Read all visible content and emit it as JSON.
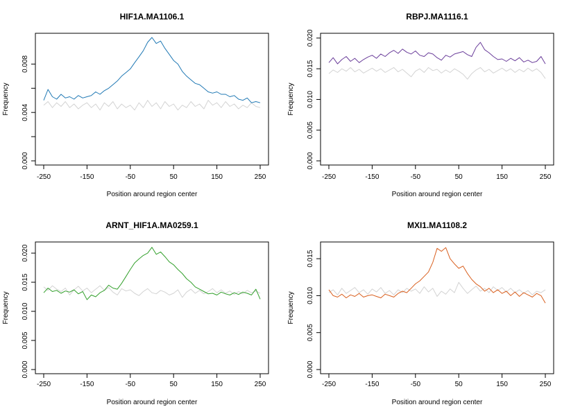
{
  "chart_data": [
    {
      "type": "line",
      "title": "HIF1A.MA1106.1",
      "xlabel": "Position around region center",
      "ylabel": "Frequency",
      "xlim": [
        -250,
        250
      ],
      "ylim": [
        0,
        0.0102
      ],
      "xticks": [
        -250,
        -150,
        -50,
        50,
        150,
        250
      ],
      "yticks": [
        "0.000",
        "0.004",
        "0.008"
      ],
      "yticks_minor": [
        0.002,
        0.006
      ],
      "series": [
        {
          "color": "#1f78b4",
          "x": [
            -250,
            -240,
            -230,
            -220,
            -210,
            -200,
            -190,
            -180,
            -170,
            -160,
            -150,
            -140,
            -130,
            -120,
            -110,
            -100,
            -90,
            -80,
            -70,
            -60,
            -50,
            -40,
            -30,
            -20,
            -10,
            0,
            10,
            20,
            30,
            40,
            50,
            60,
            70,
            80,
            90,
            100,
            110,
            120,
            130,
            140,
            150,
            160,
            170,
            180,
            190,
            200,
            210,
            220,
            230,
            240,
            250
          ],
          "y": [
            0.005,
            0.0059,
            0.0053,
            0.0051,
            0.0055,
            0.0052,
            0.0053,
            0.0051,
            0.0054,
            0.0052,
            0.0053,
            0.0054,
            0.0057,
            0.0055,
            0.0058,
            0.006,
            0.0063,
            0.0066,
            0.007,
            0.0073,
            0.0076,
            0.0081,
            0.0086,
            0.0091,
            0.0098,
            0.0102,
            0.0097,
            0.0099,
            0.0093,
            0.0088,
            0.0083,
            0.008,
            0.0074,
            0.007,
            0.0067,
            0.0064,
            0.0063,
            0.006,
            0.0057,
            0.0056,
            0.0057,
            0.0055,
            0.0055,
            0.0053,
            0.0054,
            0.0051,
            0.005,
            0.0052,
            0.0048,
            0.0049,
            0.0048
          ]
        },
        {
          "color": "#d3d3d3",
          "x": [
            -250,
            -240,
            -230,
            -220,
            -210,
            -200,
            -190,
            -180,
            -170,
            -160,
            -150,
            -140,
            -130,
            -120,
            -110,
            -100,
            -90,
            -80,
            -70,
            -60,
            -50,
            -40,
            -30,
            -20,
            -10,
            0,
            10,
            20,
            30,
            40,
            50,
            60,
            70,
            80,
            90,
            100,
            110,
            120,
            130,
            140,
            150,
            160,
            170,
            180,
            190,
            200,
            210,
            220,
            230,
            240,
            250
          ],
          "y": [
            0.0046,
            0.0049,
            0.0044,
            0.0048,
            0.0045,
            0.0049,
            0.0044,
            0.0047,
            0.0043,
            0.0046,
            0.0048,
            0.0044,
            0.0047,
            0.0042,
            0.0048,
            0.0045,
            0.0049,
            0.0043,
            0.0047,
            0.0044,
            0.0046,
            0.0042,
            0.0048,
            0.0044,
            0.005,
            0.0045,
            0.0048,
            0.0043,
            0.0049,
            0.0045,
            0.0047,
            0.0042,
            0.0046,
            0.0044,
            0.0049,
            0.0045,
            0.0047,
            0.0043,
            0.005,
            0.0046,
            0.0048,
            0.0044,
            0.0049,
            0.0045,
            0.0047,
            0.0043,
            0.0046,
            0.0044,
            0.0048,
            0.0045,
            0.0044
          ]
        }
      ]
    },
    {
      "type": "line",
      "title": "RBPJ.MA1116.1",
      "xlabel": "Position around region center",
      "ylabel": "Frequency",
      "xlim": [
        -250,
        250
      ],
      "ylim": [
        0,
        0.0201
      ],
      "xticks": [
        -250,
        -150,
        -50,
        50,
        150,
        250
      ],
      "yticks": [
        "0.000",
        "0.005",
        "0.010",
        "0.015",
        "0.020"
      ],
      "series": [
        {
          "color": "#6a3d9a",
          "x": [
            -250,
            -240,
            -230,
            -220,
            -210,
            -200,
            -190,
            -180,
            -170,
            -160,
            -150,
            -140,
            -130,
            -120,
            -110,
            -100,
            -90,
            -80,
            -70,
            -60,
            -50,
            -40,
            -30,
            -20,
            -10,
            0,
            10,
            20,
            30,
            40,
            50,
            60,
            70,
            80,
            90,
            100,
            110,
            120,
            130,
            140,
            150,
            160,
            170,
            180,
            190,
            200,
            210,
            220,
            230,
            240,
            250
          ],
          "y": [
            0.016,
            0.0168,
            0.0158,
            0.0165,
            0.017,
            0.0162,
            0.0167,
            0.016,
            0.0165,
            0.0169,
            0.0172,
            0.0167,
            0.0174,
            0.017,
            0.0176,
            0.018,
            0.0175,
            0.0182,
            0.0177,
            0.0174,
            0.0179,
            0.0172,
            0.017,
            0.0176,
            0.0174,
            0.0168,
            0.0164,
            0.0172,
            0.0169,
            0.0174,
            0.0176,
            0.0178,
            0.0173,
            0.017,
            0.0185,
            0.0193,
            0.0181,
            0.0176,
            0.017,
            0.0165,
            0.0166,
            0.0162,
            0.0167,
            0.0163,
            0.0168,
            0.0161,
            0.0164,
            0.016,
            0.0162,
            0.017,
            0.0158
          ]
        },
        {
          "color": "#d3d3d3",
          "x": [
            -250,
            -240,
            -230,
            -220,
            -210,
            -200,
            -190,
            -180,
            -170,
            -160,
            -150,
            -140,
            -130,
            -120,
            -110,
            -100,
            -90,
            -80,
            -70,
            -60,
            -50,
            -40,
            -30,
            -20,
            -10,
            0,
            10,
            20,
            30,
            40,
            50,
            60,
            70,
            80,
            90,
            100,
            110,
            120,
            130,
            140,
            150,
            160,
            170,
            180,
            190,
            200,
            210,
            220,
            230,
            240,
            250
          ],
          "y": [
            0.0142,
            0.0148,
            0.0144,
            0.015,
            0.0146,
            0.0152,
            0.0145,
            0.0149,
            0.0143,
            0.0147,
            0.0151,
            0.0146,
            0.015,
            0.0144,
            0.0148,
            0.0152,
            0.0145,
            0.0149,
            0.0143,
            0.0137,
            0.0146,
            0.015,
            0.0144,
            0.0152,
            0.0147,
            0.0149,
            0.0143,
            0.0148,
            0.0144,
            0.015,
            0.0146,
            0.0141,
            0.0133,
            0.0142,
            0.0148,
            0.0152,
            0.0145,
            0.0149,
            0.0143,
            0.0147,
            0.0151,
            0.0146,
            0.015,
            0.0144,
            0.0149,
            0.0145,
            0.0151,
            0.0146,
            0.015,
            0.0144,
            0.0134
          ]
        }
      ]
    },
    {
      "type": "line",
      "title": "ARNT_HIF1A.MA0259.1",
      "xlabel": "Position around region center",
      "ylabel": "Frequency",
      "xlim": [
        -250,
        250
      ],
      "ylim": [
        0,
        0.0212
      ],
      "xticks": [
        -250,
        -150,
        -50,
        50,
        150,
        250
      ],
      "yticks": [
        "0.000",
        "0.005",
        "0.010",
        "0.015",
        "0.020"
      ],
      "series": [
        {
          "color": "#33a02c",
          "x": [
            -250,
            -240,
            -230,
            -220,
            -210,
            -200,
            -190,
            -180,
            -170,
            -160,
            -150,
            -140,
            -130,
            -120,
            -110,
            -100,
            -90,
            -80,
            -70,
            -60,
            -50,
            -40,
            -30,
            -20,
            -10,
            0,
            10,
            20,
            30,
            40,
            50,
            60,
            70,
            80,
            90,
            100,
            110,
            120,
            130,
            140,
            150,
            160,
            170,
            180,
            190,
            200,
            210,
            220,
            230,
            240,
            250
          ],
          "y": [
            0.0132,
            0.014,
            0.0134,
            0.0136,
            0.0131,
            0.0135,
            0.0133,
            0.0137,
            0.013,
            0.0134,
            0.012,
            0.0128,
            0.0125,
            0.0132,
            0.0136,
            0.0145,
            0.014,
            0.0138,
            0.0148,
            0.016,
            0.0172,
            0.0183,
            0.019,
            0.0196,
            0.02,
            0.021,
            0.0198,
            0.0202,
            0.0194,
            0.0185,
            0.018,
            0.0172,
            0.0165,
            0.0156,
            0.015,
            0.0142,
            0.0138,
            0.0134,
            0.013,
            0.0131,
            0.0128,
            0.0133,
            0.013,
            0.0128,
            0.0132,
            0.0129,
            0.0133,
            0.0131,
            0.0128,
            0.0138,
            0.0121
          ]
        },
        {
          "color": "#d3d3d3",
          "x": [
            -250,
            -240,
            -230,
            -220,
            -210,
            -200,
            -190,
            -180,
            -170,
            -160,
            -150,
            -140,
            -130,
            -120,
            -110,
            -100,
            -90,
            -80,
            -70,
            -60,
            -50,
            -40,
            -30,
            -20,
            -10,
            0,
            10,
            20,
            30,
            40,
            50,
            60,
            70,
            80,
            90,
            100,
            110,
            120,
            130,
            140,
            150,
            160,
            170,
            180,
            190,
            200,
            210,
            220,
            230,
            240,
            250
          ],
          "y": [
            0.0142,
            0.0136,
            0.0144,
            0.0138,
            0.0134,
            0.014,
            0.0128,
            0.0137,
            0.0143,
            0.0135,
            0.014,
            0.0132,
            0.0138,
            0.0144,
            0.0136,
            0.0141,
            0.0133,
            0.0128,
            0.0139,
            0.0135,
            0.0137,
            0.0131,
            0.0127,
            0.0134,
            0.0139,
            0.0132,
            0.013,
            0.0136,
            0.0133,
            0.0128,
            0.0131,
            0.0137,
            0.0124,
            0.0133,
            0.0138,
            0.0131,
            0.0136,
            0.013,
            0.0134,
            0.0139,
            0.0132,
            0.0137,
            0.0131,
            0.0135,
            0.0129,
            0.0134,
            0.013,
            0.0136,
            0.0132,
            0.0135,
            0.0131
          ]
        }
      ]
    },
    {
      "type": "line",
      "title": "MXI1.MA1108.2",
      "xlabel": "Position around region center",
      "ylabel": "Frequency",
      "xlim": [
        -250,
        250
      ],
      "ylim": [
        0,
        0.0167
      ],
      "xticks": [
        -250,
        -150,
        -50,
        50,
        150,
        250
      ],
      "yticks": [
        "0.000",
        "0.005",
        "0.010",
        "0.015"
      ],
      "series": [
        {
          "color": "#d95f1e",
          "x": [
            -250,
            -240,
            -230,
            -220,
            -210,
            -200,
            -190,
            -180,
            -170,
            -160,
            -150,
            -140,
            -130,
            -120,
            -110,
            -100,
            -90,
            -80,
            -70,
            -60,
            -50,
            -40,
            -30,
            -20,
            -10,
            0,
            10,
            20,
            30,
            40,
            50,
            60,
            70,
            80,
            90,
            100,
            110,
            120,
            130,
            140,
            150,
            160,
            170,
            180,
            190,
            200,
            210,
            220,
            230,
            240,
            250
          ],
          "y": [
            0.0108,
            0.01,
            0.0098,
            0.0102,
            0.0097,
            0.0101,
            0.0099,
            0.0103,
            0.0098,
            0.01,
            0.0101,
            0.0099,
            0.0097,
            0.0102,
            0.01,
            0.0098,
            0.0103,
            0.0106,
            0.0104,
            0.011,
            0.0116,
            0.012,
            0.0126,
            0.0132,
            0.0145,
            0.0164,
            0.016,
            0.0165,
            0.015,
            0.0143,
            0.0137,
            0.014,
            0.013,
            0.0122,
            0.0116,
            0.0112,
            0.0106,
            0.011,
            0.0104,
            0.0108,
            0.0103,
            0.0106,
            0.01,
            0.0105,
            0.0099,
            0.0104,
            0.0101,
            0.0098,
            0.0103,
            0.01,
            0.009
          ]
        },
        {
          "color": "#d3d3d3",
          "x": [
            -250,
            -240,
            -230,
            -220,
            -210,
            -200,
            -190,
            -180,
            -170,
            -160,
            -150,
            -140,
            -130,
            -120,
            -110,
            -100,
            -90,
            -80,
            -70,
            -60,
            -50,
            -40,
            -30,
            -20,
            -10,
            0,
            10,
            20,
            30,
            40,
            50,
            60,
            70,
            80,
            90,
            100,
            110,
            120,
            130,
            140,
            150,
            160,
            170,
            180,
            190,
            200,
            210,
            220,
            230,
            240,
            250
          ],
          "y": [
            0.0104,
            0.0108,
            0.0101,
            0.011,
            0.0103,
            0.0107,
            0.0111,
            0.0104,
            0.0108,
            0.0102,
            0.0109,
            0.0105,
            0.0111,
            0.0103,
            0.0107,
            0.0101,
            0.0108,
            0.0104,
            0.011,
            0.0106,
            0.0109,
            0.0103,
            0.0112,
            0.0105,
            0.011,
            0.0099,
            0.0106,
            0.0102,
            0.0109,
            0.0104,
            0.0118,
            0.011,
            0.0103,
            0.0108,
            0.0113,
            0.0106,
            0.011,
            0.0104,
            0.0112,
            0.0107,
            0.0111,
            0.0105,
            0.011,
            0.0104,
            0.0108,
            0.0103,
            0.0107,
            0.0101,
            0.0106,
            0.0104,
            0.0108
          ]
        }
      ]
    }
  ]
}
